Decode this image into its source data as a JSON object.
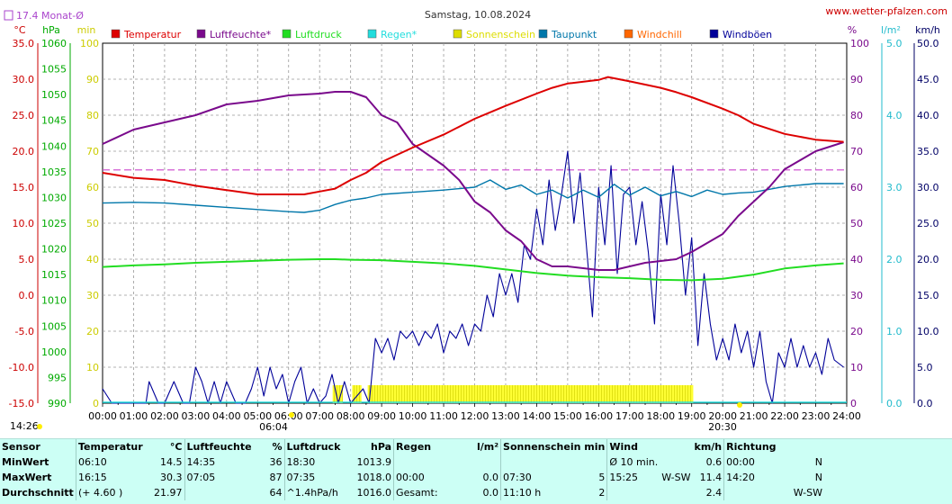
{
  "title": "Samstag, 10.08.2024",
  "site": "www.wetter-pfalzen.com",
  "month_avg_label": "17.4 Monat-Ø",
  "unit_labels": {
    "left1": "°C",
    "left2": "hPa",
    "left3": "min",
    "right1": "%",
    "right2": "l/m²",
    "right3": "km/h"
  },
  "sun_labels": {
    "sunrise_time": "06:04",
    "sunset_time": "20:30",
    "dawn": "14:26",
    "dusk": "20:30"
  },
  "legend": [
    {
      "label": "Temperatur",
      "color": "#dd0000"
    },
    {
      "label": "Luftfeuchte*",
      "color": "#7a0a8c"
    },
    {
      "label": "Luftdruck",
      "color": "#22dd22"
    },
    {
      "label": "Regen*",
      "color": "#22dddd"
    },
    {
      "label": "Sonnenschein",
      "color": "#dddd00"
    },
    {
      "label": "Taupunkt",
      "color": "#0077aa"
    },
    {
      "label": "Windchill",
      "color": "#ff6600"
    },
    {
      "label": "Windböen",
      "color": "#000099"
    }
  ],
  "chart_data": {
    "type": "line",
    "title": "Samstag, 10.08.2024",
    "x_ticks": [
      "00:00",
      "01:00",
      "02:00",
      "03:00",
      "04:00",
      "05:00",
      "06:00",
      "07:00",
      "08:00",
      "09:00",
      "10:00",
      "11:00",
      "12:00",
      "13:00",
      "14:00",
      "15:00",
      "16:00",
      "17:00",
      "18:00",
      "19:00",
      "20:00",
      "21:00",
      "22:00",
      "23:00",
      "24:00"
    ],
    "axes": {
      "temperature": {
        "unit": "°C",
        "range": [
          -15,
          35
        ],
        "ticks": [
          "35.0",
          "30.0",
          "25.0",
          "20.0",
          "15.0",
          "10.0",
          "5.0",
          "0.0",
          "-5.0",
          "-10.0",
          "-15.0"
        ]
      },
      "pressure": {
        "unit": "hPa",
        "range": [
          990,
          1060
        ],
        "ticks": [
          "1060",
          "1055",
          "1050",
          "1045",
          "1040",
          "1035",
          "1030",
          "1025",
          "1020",
          "1015",
          "1010",
          "1005",
          "1000",
          "995",
          "990"
        ]
      },
      "sunshine": {
        "unit": "min",
        "range": [
          0,
          100
        ],
        "ticks": [
          "100",
          "90",
          "80",
          "70",
          "60",
          "50",
          "40",
          "30",
          "20",
          "10",
          "0"
        ]
      },
      "humidity": {
        "unit": "%",
        "range": [
          0,
          100
        ],
        "ticks": [
          "100",
          "90",
          "80",
          "70",
          "60",
          "50",
          "40",
          "30",
          "20",
          "10",
          "0"
        ]
      },
      "rain": {
        "unit": "l/m²",
        "range": [
          0,
          5
        ],
        "ticks": [
          "5.0",
          "4.0",
          "3.0",
          "2.0",
          "1.0",
          "0.0"
        ]
      },
      "wind": {
        "unit": "km/h",
        "range": [
          0,
          50
        ],
        "ticks": [
          "50.0",
          "45.0",
          "40.0",
          "35.0",
          "30.0",
          "25.0",
          "20.0",
          "15.0",
          "10.0",
          "5.0",
          "0.0"
        ]
      }
    },
    "month_avg_temperature": 17.4,
    "series": [
      {
        "name": "Temperatur",
        "axis": "temperature",
        "color": "#dd0000",
        "x": [
          0,
          1,
          2,
          2.5,
          3,
          4,
          5,
          6,
          6.5,
          7,
          7.5,
          8,
          8.5,
          9,
          10,
          11,
          12,
          13,
          14,
          14.5,
          15,
          16,
          16.3,
          17,
          18,
          18.5,
          19,
          20,
          20.5,
          21,
          22,
          23,
          23.9
        ],
        "y": [
          17.0,
          16.3,
          16.0,
          15.6,
          15.2,
          14.6,
          14.0,
          14.0,
          14.0,
          14.4,
          14.8,
          16.0,
          17.0,
          18.5,
          20.5,
          22.3,
          24.5,
          26.3,
          28.0,
          28.8,
          29.4,
          29.9,
          30.3,
          29.7,
          28.8,
          28.2,
          27.5,
          25.9,
          25.0,
          23.8,
          22.4,
          21.6,
          21.3
        ]
      },
      {
        "name": "Luftfeuchte*",
        "axis": "humidity",
        "color": "#7a0a8c",
        "x": [
          0,
          1,
          2,
          3,
          4,
          5,
          6,
          7,
          7.5,
          8,
          8.5,
          9,
          9.5,
          10,
          11,
          11.5,
          12,
          12.5,
          13,
          13.5,
          14,
          14.5,
          15,
          15.5,
          16,
          16.5,
          17,
          17.5,
          18,
          18.5,
          19,
          20,
          20.5,
          21,
          21.5,
          22,
          23,
          23.9
        ],
        "y": [
          72,
          76,
          78,
          80,
          83,
          84,
          85.5,
          86,
          86.5,
          86.5,
          85,
          80,
          78,
          72,
          66,
          62,
          56,
          53,
          48,
          45,
          40,
          38,
          38,
          37.5,
          37,
          37,
          38,
          39,
          39.5,
          40,
          42,
          47,
          52,
          56,
          60,
          65,
          70,
          72.5
        ]
      },
      {
        "name": "Luftdruck",
        "axis": "pressure",
        "color": "#22dd22",
        "x": [
          0,
          1,
          2,
          3,
          4,
          5,
          6,
          7,
          7.5,
          8,
          9,
          10,
          11,
          12,
          13,
          14,
          15,
          16,
          17,
          18,
          19,
          20,
          21,
          22,
          23,
          23.9
        ],
        "y": [
          1016.5,
          1016.8,
          1017.0,
          1017.3,
          1017.5,
          1017.7,
          1017.9,
          1018.0,
          1018.0,
          1017.9,
          1017.8,
          1017.5,
          1017.2,
          1016.7,
          1016.0,
          1015.3,
          1014.8,
          1014.5,
          1014.3,
          1014.0,
          1013.9,
          1014.2,
          1015.0,
          1016.2,
          1016.8,
          1017.2
        ]
      },
      {
        "name": "Taupunkt",
        "axis": "temperature",
        "color": "#0077aa",
        "x": [
          0,
          1,
          2,
          3,
          4,
          5,
          6,
          6.5,
          7,
          7.5,
          8,
          8.5,
          9,
          10,
          11,
          12,
          12.5,
          13,
          13.5,
          14,
          14.5,
          15,
          15.5,
          16,
          16.5,
          17,
          17.5,
          18,
          18.5,
          19,
          19.5,
          20,
          20.5,
          21,
          22,
          23,
          23.9
        ],
        "y": [
          12.8,
          12.9,
          12.8,
          12.5,
          12.2,
          11.9,
          11.6,
          11.5,
          11.8,
          12.6,
          13.2,
          13.5,
          14.0,
          14.3,
          14.6,
          15.0,
          16.0,
          14.7,
          15.3,
          14.0,
          14.6,
          13.5,
          14.6,
          13.6,
          15.4,
          13.9,
          15.0,
          13.8,
          14.4,
          13.7,
          14.6,
          14.0,
          14.2,
          14.3,
          15.1,
          15.5,
          15.5
        ]
      },
      {
        "name": "Windböen",
        "axis": "wind",
        "color": "#000099",
        "x": [
          0,
          0.3,
          0.6,
          1,
          1.4,
          1.5,
          1.8,
          2,
          2.3,
          2.6,
          2.8,
          3,
          3.2,
          3.4,
          3.6,
          3.8,
          4,
          4.3,
          4.6,
          4.8,
          5,
          5.2,
          5.4,
          5.6,
          5.8,
          6,
          6.2,
          6.4,
          6.6,
          6.8,
          7,
          7.2,
          7.4,
          7.6,
          7.8,
          8,
          8.2,
          8.4,
          8.6,
          8.8,
          9,
          9.2,
          9.4,
          9.6,
          9.8,
          10,
          10.2,
          10.4,
          10.6,
          10.8,
          11,
          11.2,
          11.4,
          11.6,
          11.8,
          12,
          12.2,
          12.4,
          12.6,
          12.8,
          13,
          13.2,
          13.4,
          13.6,
          13.8,
          14,
          14.2,
          14.4,
          14.6,
          14.8,
          15,
          15.2,
          15.4,
          15.6,
          15.8,
          16,
          16.2,
          16.4,
          16.6,
          16.8,
          17,
          17.2,
          17.4,
          17.6,
          17.8,
          18,
          18.2,
          18.4,
          18.6,
          18.8,
          19,
          19.2,
          19.4,
          19.6,
          19.8,
          20,
          20.2,
          20.4,
          20.6,
          20.8,
          21,
          21.2,
          21.4,
          21.6,
          21.8,
          22,
          22.2,
          22.4,
          22.6,
          22.8,
          23,
          23.2,
          23.4,
          23.6,
          23.9
        ],
        "y": [
          2,
          0,
          0,
          0,
          0,
          3,
          0,
          0,
          3,
          0,
          0,
          5,
          3,
          0,
          3,
          0,
          3,
          0,
          0,
          2,
          5,
          1,
          5,
          2,
          4,
          0,
          3,
          5,
          0,
          2,
          0,
          1,
          4,
          0,
          3,
          0,
          1,
          2,
          0,
          9,
          7,
          9,
          6,
          10,
          9,
          10,
          8,
          10,
          9,
          11,
          7,
          10,
          9,
          11,
          8,
          11,
          10,
          15,
          12,
          18,
          15,
          18,
          14,
          22,
          20,
          27,
          22,
          31,
          24,
          29,
          35,
          25,
          32,
          22,
          12,
          30,
          22,
          33,
          18,
          29,
          30,
          22,
          28,
          21,
          11,
          29,
          22,
          33,
          25,
          15,
          23,
          8,
          18,
          11,
          6,
          9,
          6,
          11,
          7,
          10,
          5,
          10,
          3,
          0,
          7,
          5,
          9,
          5,
          8,
          5,
          7,
          4,
          9,
          6,
          5
        ]
      },
      {
        "name": "Sonnenschein",
        "axis": "sunshine",
        "color": "#dddd00",
        "bars": [
          [
            7.42,
            7.75,
            5
          ],
          [
            8.05,
            8.35,
            5
          ],
          [
            8.55,
            19.05,
            5
          ]
        ]
      }
    ]
  },
  "stats": {
    "headers": [
      "Sensor",
      "Temperatur",
      "°C",
      "Luftfeuchte",
      "%",
      "Luftdruck",
      "hPa",
      "Regen",
      "l/m²",
      "Sonnenschein min",
      "Wind",
      "km/h",
      "Richtung"
    ],
    "rows": [
      {
        "label": "MinWert",
        "c": [
          "06:10",
          "14.5",
          "14:35",
          "36",
          "18:30",
          "1013.9",
          "",
          "",
          "",
          "",
          "Ø 10 min.",
          "",
          "0.6",
          "00:00",
          "N"
        ]
      },
      {
        "label": "MaxWert",
        "c": [
          "16:15",
          "30.3",
          "07:05",
          "87",
          "07:35",
          "1018.0",
          "00:00",
          "0.0",
          "07:30",
          "5",
          "15:25",
          "W-SW",
          "11.4",
          "14:20",
          "N"
        ]
      },
      {
        "label": "Durchschnitt",
        "c": [
          "(+ 4.60 )",
          "21.97",
          "",
          "64",
          "^1.4hPa/h",
          "1016.0",
          "Gesamt:",
          "0.0",
          "11:10 h",
          "2",
          "",
          "",
          "2.4",
          "",
          "W-SW"
        ]
      }
    ]
  }
}
